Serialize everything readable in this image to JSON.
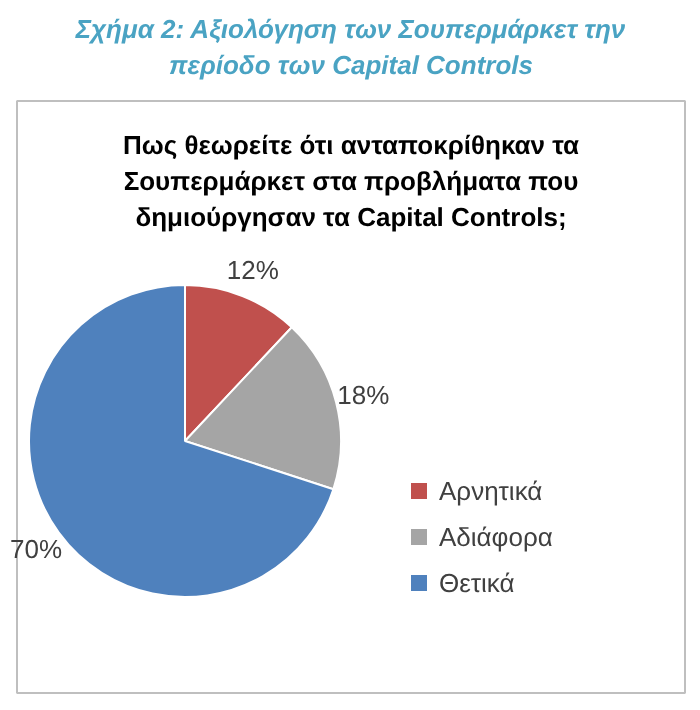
{
  "chart_data": {
    "type": "pie",
    "title": "Σχήμα 2: Αξιολόγηση των Σουπερμάρκετ την περίοδο των Capital Controls",
    "subtitle": "Πως θεωρείτε ότι ανταποκρίθηκαν τα Σουπερμάρκετ στα προβλήματα που δημιούργησαν τα Capital Controls;",
    "categories": [
      "Αρνητικά",
      "Αδιάφορα",
      "Θετικά"
    ],
    "values": [
      12,
      18,
      70
    ],
    "value_labels": [
      "12%",
      "18%",
      "70%"
    ],
    "colors": [
      "#c0504d",
      "#a5a5a5",
      "#4f81bd"
    ],
    "legend": "right"
  }
}
